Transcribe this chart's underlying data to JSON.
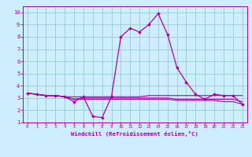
{
  "background_color": "#cceeff",
  "grid_color": "#99cccc",
  "line_color": "#aa00aa",
  "xlim": [
    -0.5,
    23.5
  ],
  "ylim": [
    1,
    10.5
  ],
  "xticks": [
    0,
    1,
    2,
    3,
    4,
    5,
    6,
    7,
    8,
    9,
    10,
    11,
    12,
    13,
    14,
    15,
    16,
    17,
    18,
    19,
    20,
    21,
    22,
    23
  ],
  "yticks": [
    1,
    2,
    3,
    4,
    5,
    6,
    7,
    8,
    9,
    10
  ],
  "xlabel": "Windchill (Refroidissement éolien,°C)",
  "curve1": [
    3.4,
    3.3,
    3.2,
    3.2,
    3.1,
    2.7,
    3.1,
    1.5,
    1.4,
    3.1,
    8.0,
    8.7,
    8.4,
    9.0,
    9.9,
    8.2,
    5.5,
    4.3,
    3.3,
    2.9,
    3.3,
    3.2,
    3.2,
    2.5
  ],
  "curve2": [
    3.4,
    3.3,
    3.2,
    3.2,
    3.1,
    3.1,
    3.1,
    3.1,
    3.1,
    3.1,
    3.1,
    3.1,
    3.1,
    3.2,
    3.2,
    3.2,
    3.2,
    3.2,
    3.2,
    3.2,
    3.2,
    3.2,
    3.2,
    3.2
  ],
  "curve3": [
    3.4,
    3.3,
    3.2,
    3.2,
    3.1,
    2.9,
    2.9,
    2.9,
    2.9,
    2.9,
    2.9,
    2.9,
    2.9,
    2.9,
    2.9,
    2.9,
    2.8,
    2.8,
    2.8,
    2.8,
    2.8,
    2.7,
    2.7,
    2.5
  ],
  "curve4": [
    3.4,
    3.3,
    3.2,
    3.2,
    3.1,
    2.9,
    3.0,
    3.0,
    3.0,
    3.0,
    3.0,
    3.0,
    3.0,
    3.0,
    3.0,
    3.0,
    2.9,
    2.9,
    2.9,
    2.9,
    2.9,
    2.9,
    2.9,
    2.7
  ]
}
